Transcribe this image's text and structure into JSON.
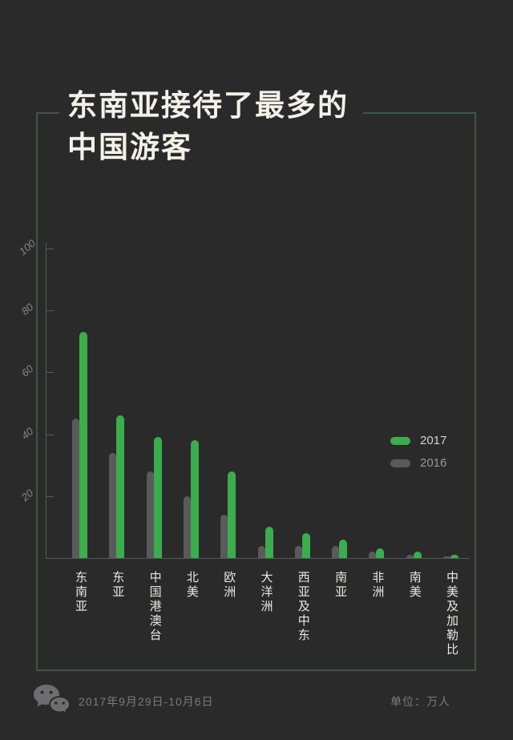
{
  "page": {
    "title_line1": "东南亚接待了最多的",
    "title_line2": "中国游客"
  },
  "chart_data": {
    "type": "bar",
    "title": "东南亚接待了最多的中国游客",
    "xlabel": "",
    "ylabel": "万人",
    "ylim": [
      0,
      105
    ],
    "y_ticks": [
      20,
      40,
      60,
      80,
      100
    ],
    "grid": false,
    "legend_position": "middle-right",
    "categories": [
      "东南亚",
      "东亚",
      "中国港澳台",
      "北美",
      "欧洲",
      "大洋洲",
      "西亚及中东",
      "南亚",
      "非洲",
      "南美",
      "中美及加勒比"
    ],
    "series": [
      {
        "name": "2016",
        "color": "#5a5a5c",
        "values": [
          45,
          34,
          28,
          20,
          14,
          4,
          4,
          4,
          2,
          1,
          0.5
        ]
      },
      {
        "name": "2017",
        "color": "#3aad4c",
        "values": [
          73,
          46,
          39,
          38,
          28,
          10,
          8,
          6,
          3,
          2,
          1
        ]
      }
    ]
  },
  "legend": {
    "items": [
      {
        "label": "2017",
        "color": "#3aad4c"
      },
      {
        "label": "2016",
        "color": "#5a5a5c"
      }
    ]
  },
  "footer": {
    "date_range": "2017年9月29日-10月6日",
    "unit_label": "单位：万人"
  },
  "icons": {
    "wechat": "wechat-icon"
  },
  "colors": {
    "background": "#2b2a2b",
    "frame_border": "#3e5647",
    "title_text": "#f4f1e8",
    "axis": "#58585a",
    "tick_label": "#85858a",
    "category_label": "#e9e7dd",
    "bar_2017": "#3aad4c",
    "bar_2016": "#5a5a5c",
    "footer_text": "#7a7a7c",
    "wechat_gray": "#6e6e70"
  }
}
